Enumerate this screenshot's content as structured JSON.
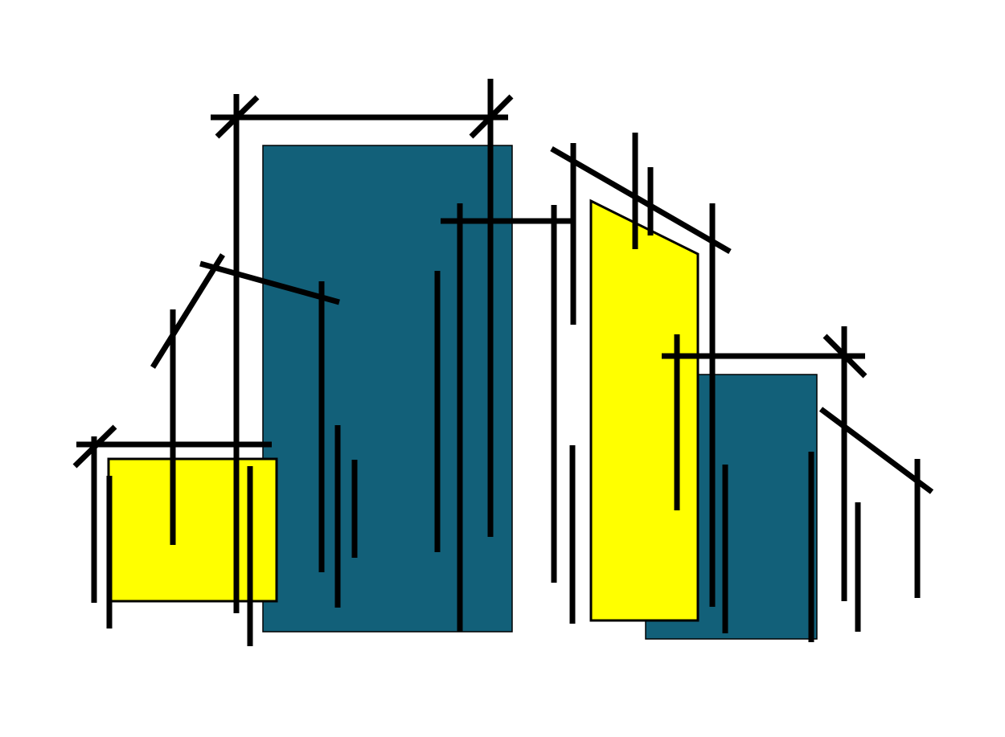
{
  "colors": {
    "background": "#ffffff",
    "yellow": "#ffff00",
    "teal": "#126079",
    "line": "#000000"
  }
}
